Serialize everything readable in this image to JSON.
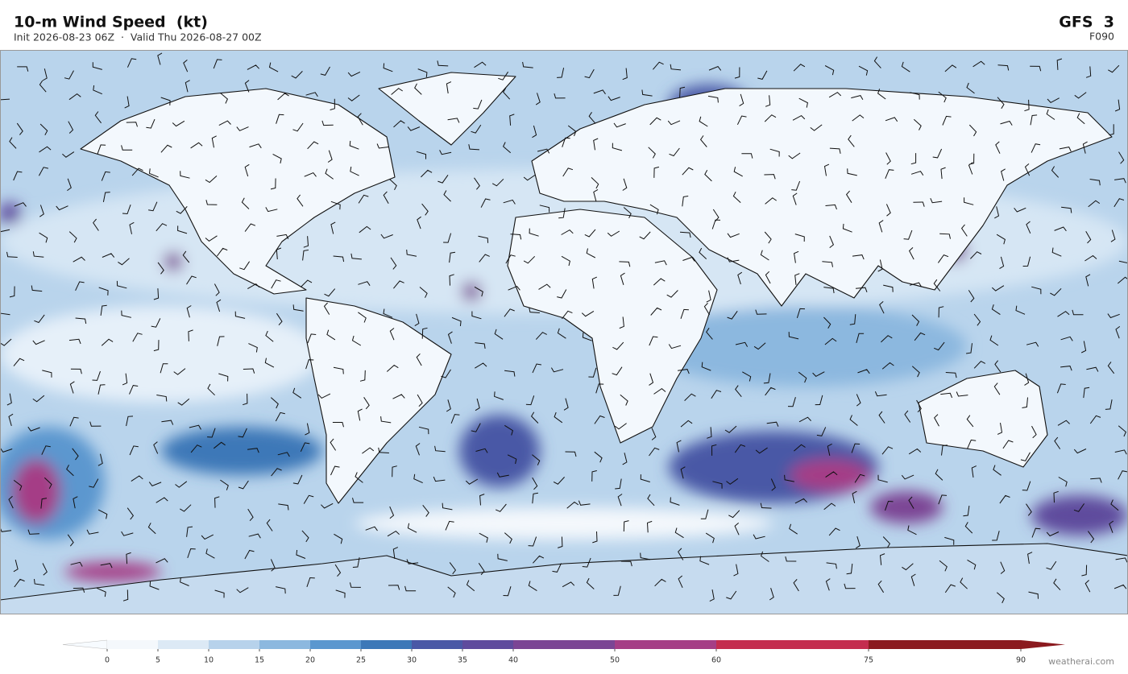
{
  "header": {
    "title": "10-m Wind Speed  (kt)",
    "subtitle": "Init 2026-08-23 06Z  ·  Valid Thu 2026-08-27 00Z",
    "model": "GFS  3",
    "forecast_hour": "F090"
  },
  "colorbar": {
    "ticks": [
      0,
      5,
      10,
      15,
      20,
      25,
      30,
      35,
      40,
      50,
      60,
      75,
      90
    ],
    "colors": [
      "#f4f8fc",
      "#dce9f5",
      "#b7d2eb",
      "#8cb8df",
      "#5b97cf",
      "#3c78b8",
      "#4a58a6",
      "#5f4b9d",
      "#7b4594",
      "#a53e86",
      "#c42d4f",
      "#8b1a1f"
    ],
    "under_color": "#f7fbff",
    "over_color": "#8b1a1f"
  },
  "footer": {
    "credit": "weatherai.com"
  }
}
